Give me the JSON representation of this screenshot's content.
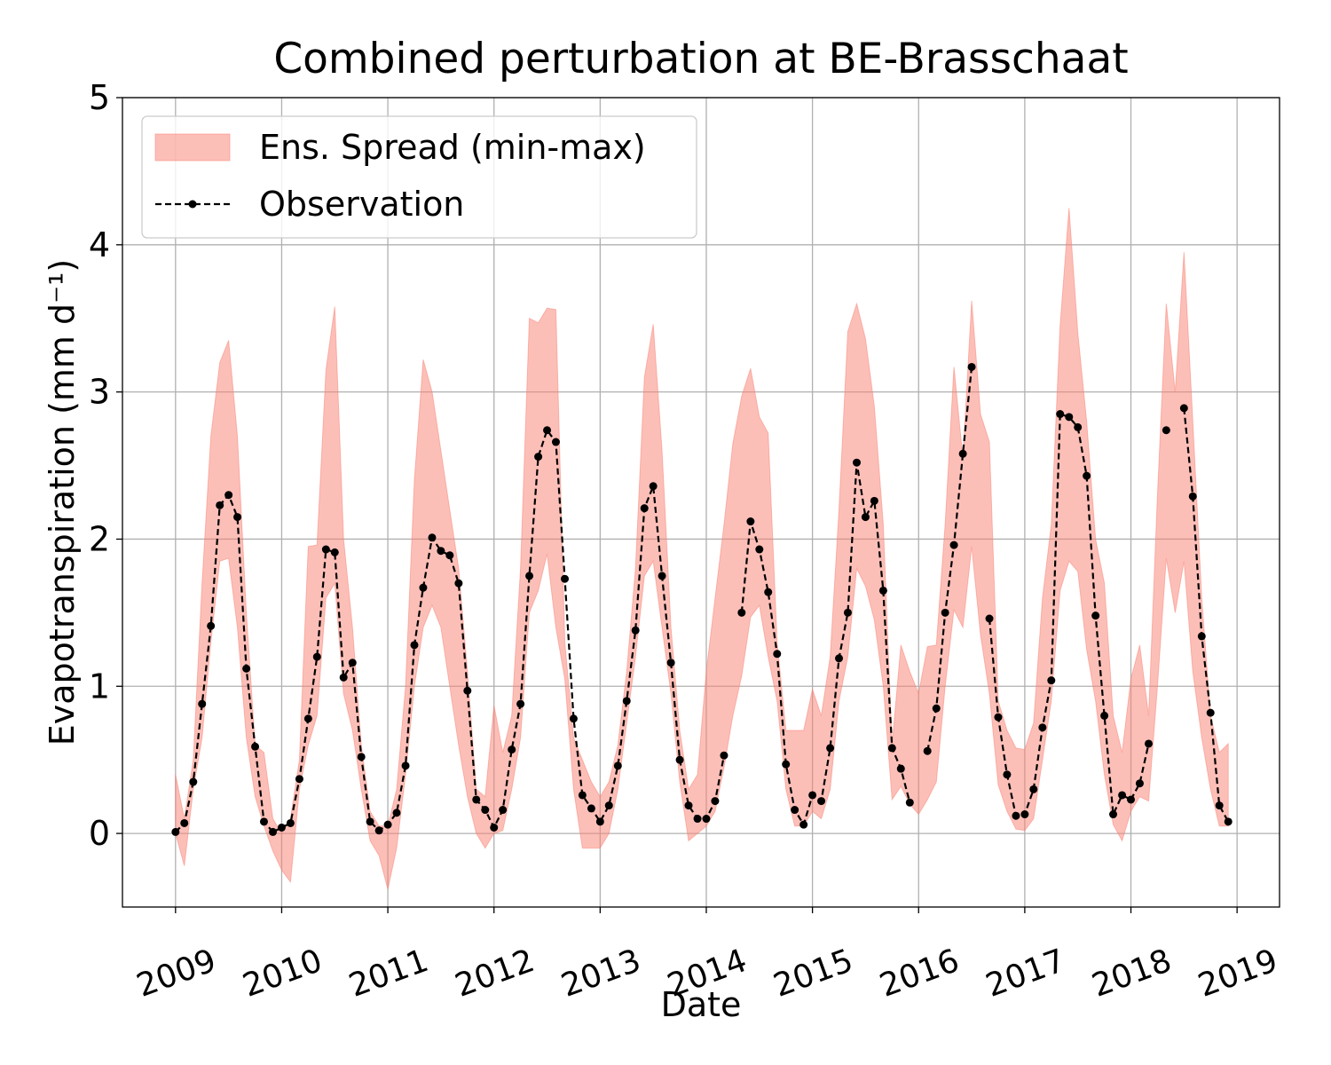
{
  "chart_data": {
    "type": "line",
    "title": "Combined perturbation at BE-Brasschaat",
    "x_label": "Date",
    "y_label": "Evapotranspiration  (mm d⁻¹)",
    "xlim": [
      2008.5,
      2019.4
    ],
    "xticks": [
      2009,
      2010,
      2011,
      2012,
      2013,
      2014,
      2015,
      2016,
      2017,
      2018,
      2019
    ],
    "ylim": [
      -0.5,
      5
    ],
    "yticks": [
      0,
      1,
      2,
      3,
      4,
      5
    ],
    "grid": true,
    "legend": "upper left",
    "x": [
      2009.0,
      2009.083,
      2009.167,
      2009.25,
      2009.333,
      2009.417,
      2009.5,
      2009.583,
      2009.667,
      2009.75,
      2009.833,
      2009.917,
      2010.0,
      2010.083,
      2010.167,
      2010.25,
      2010.333,
      2010.417,
      2010.5,
      2010.583,
      2010.667,
      2010.75,
      2010.833,
      2010.917,
      2011.0,
      2011.083,
      2011.167,
      2011.25,
      2011.333,
      2011.417,
      2011.5,
      2011.583,
      2011.667,
      2011.75,
      2011.833,
      2011.917,
      2012.0,
      2012.083,
      2012.167,
      2012.25,
      2012.333,
      2012.417,
      2012.5,
      2012.583,
      2012.667,
      2012.75,
      2012.833,
      2012.917,
      2013.0,
      2013.083,
      2013.167,
      2013.25,
      2013.333,
      2013.417,
      2013.5,
      2013.583,
      2013.667,
      2013.75,
      2013.833,
      2013.917,
      2014.0,
      2014.083,
      2014.167,
      2014.25,
      2014.333,
      2014.417,
      2014.5,
      2014.583,
      2014.667,
      2014.75,
      2014.833,
      2014.917,
      2015.0,
      2015.083,
      2015.167,
      2015.25,
      2015.333,
      2015.417,
      2015.5,
      2015.583,
      2015.667,
      2015.75,
      2015.833,
      2015.917,
      2016.0,
      2016.083,
      2016.167,
      2016.25,
      2016.333,
      2016.417,
      2016.5,
      2016.583,
      2016.667,
      2016.75,
      2016.833,
      2016.917,
      2017.0,
      2017.083,
      2017.167,
      2017.25,
      2017.333,
      2017.417,
      2017.5,
      2017.583,
      2017.667,
      2017.75,
      2017.833,
      2017.917,
      2018.0,
      2018.083,
      2018.167,
      2018.25,
      2018.333,
      2018.417,
      2018.5,
      2018.583,
      2018.667,
      2018.75,
      2018.833,
      2018.917
    ],
    "series": [
      {
        "name": "Ens. Spread (min-max)",
        "kind": "band",
        "color": "#fa8072",
        "alpha": 0.5,
        "upper": [
          0.4,
          0.1,
          0.5,
          1.7,
          2.7,
          3.2,
          3.35,
          2.7,
          1.5,
          0.6,
          0.55,
          0.1,
          0.0,
          0.1,
          0.5,
          1.95,
          1.96,
          3.15,
          3.58,
          2.0,
          1.4,
          0.6,
          0.15,
          0.05,
          0.05,
          0.3,
          1.0,
          2.4,
          3.22,
          3.0,
          2.6,
          2.2,
          1.8,
          1.1,
          0.3,
          0.25,
          0.87,
          0.55,
          0.8,
          1.8,
          3.5,
          3.47,
          3.57,
          3.56,
          1.3,
          0.65,
          0.5,
          0.35,
          0.25,
          0.35,
          0.6,
          1.1,
          1.8,
          3.1,
          3.46,
          2.6,
          1.4,
          0.7,
          0.3,
          0.4,
          1.1,
          1.6,
          2.1,
          2.65,
          2.97,
          3.16,
          2.83,
          2.72,
          1.3,
          0.7,
          0.7,
          0.7,
          0.98,
          0.8,
          1.2,
          2.2,
          3.41,
          3.6,
          3.36,
          2.9,
          2.1,
          0.6,
          1.28,
          1.1,
          0.95,
          1.27,
          1.28,
          2.1,
          3.17,
          2.55,
          3.62,
          2.85,
          2.66,
          0.9,
          0.7,
          0.58,
          0.57,
          0.75,
          1.6,
          2.1,
          3.45,
          4.25,
          3.4,
          2.8,
          2.0,
          1.7,
          0.8,
          0.55,
          1.05,
          1.28,
          0.8,
          2.3,
          3.6,
          3.0,
          3.95,
          2.8,
          1.6,
          0.8,
          0.55,
          0.61
        ],
        "lower": [
          0.0,
          -0.22,
          0.3,
          0.65,
          1.3,
          1.85,
          1.87,
          1.4,
          0.65,
          0.25,
          0.05,
          -0.12,
          -0.25,
          -0.33,
          0.3,
          0.6,
          0.8,
          1.6,
          1.7,
          0.95,
          0.7,
          0.3,
          -0.05,
          -0.15,
          -0.38,
          -0.1,
          0.4,
          1.0,
          1.4,
          1.55,
          1.4,
          1.0,
          0.6,
          0.25,
          0.0,
          -0.1,
          0.0,
          0.02,
          0.3,
          0.65,
          1.5,
          1.65,
          1.9,
          1.4,
          1.05,
          0.3,
          -0.1,
          -0.1,
          -0.1,
          0.0,
          0.3,
          0.75,
          1.2,
          1.75,
          1.85,
          1.4,
          0.95,
          0.35,
          -0.05,
          0.0,
          0.05,
          0.15,
          0.45,
          0.8,
          1.07,
          1.47,
          1.55,
          1.2,
          0.9,
          0.3,
          0.05,
          0.05,
          0.15,
          0.1,
          0.3,
          0.9,
          1.2,
          1.8,
          1.68,
          1.45,
          1.0,
          0.23,
          0.32,
          0.2,
          0.13,
          0.23,
          0.35,
          1.0,
          1.52,
          1.4,
          1.95,
          1.35,
          0.95,
          0.33,
          0.15,
          0.03,
          0.02,
          0.1,
          0.5,
          0.9,
          1.65,
          1.85,
          1.78,
          1.25,
          0.9,
          0.4,
          0.06,
          -0.05,
          0.15,
          0.25,
          0.22,
          1.0,
          1.87,
          1.5,
          1.85,
          1.1,
          0.65,
          0.3,
          0.05,
          0.05
        ]
      },
      {
        "name": "Observation",
        "color": "#000000",
        "values": [
          0.01,
          0.07,
          0.35,
          0.88,
          1.41,
          2.23,
          2.3,
          2.15,
          1.12,
          0.59,
          0.08,
          0.01,
          0.04,
          0.07,
          0.37,
          0.78,
          1.2,
          1.93,
          1.91,
          1.06,
          1.16,
          0.52,
          0.08,
          0.02,
          0.06,
          0.14,
          0.46,
          1.28,
          1.67,
          2.01,
          1.92,
          1.89,
          1.7,
          0.97,
          0.23,
          0.16,
          0.04,
          0.16,
          0.57,
          0.88,
          1.75,
          2.56,
          2.74,
          2.66,
          1.73,
          0.78,
          0.26,
          0.17,
          0.08,
          0.19,
          0.46,
          0.9,
          1.38,
          2.21,
          2.36,
          1.75,
          1.16,
          0.5,
          0.19,
          0.1,
          0.1,
          0.22,
          0.53,
          null,
          1.5,
          2.12,
          1.93,
          1.64,
          1.22,
          0.47,
          0.16,
          0.06,
          0.26,
          0.22,
          0.58,
          1.19,
          1.5,
          2.52,
          2.15,
          2.26,
          1.65,
          0.58,
          0.44,
          0.21,
          null,
          0.56,
          0.85,
          1.5,
          1.96,
          2.58,
          3.17,
          null,
          1.46,
          0.79,
          0.4,
          0.12,
          0.13,
          0.3,
          0.72,
          1.04,
          2.85,
          2.83,
          2.76,
          2.43,
          1.48,
          0.8,
          0.13,
          0.26,
          0.23,
          0.34,
          0.61,
          null,
          2.74,
          null,
          2.89,
          2.29,
          1.34,
          0.82,
          0.19,
          0.08
        ]
      }
    ]
  }
}
